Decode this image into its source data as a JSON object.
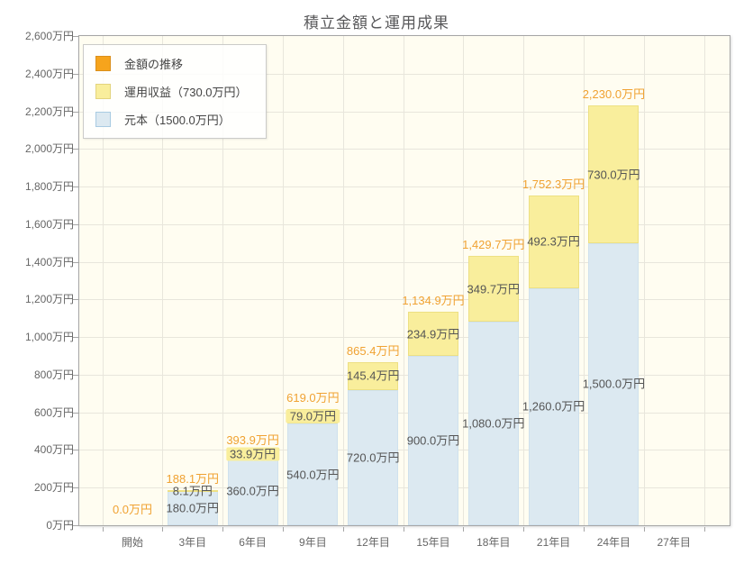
{
  "chart_data": {
    "type": "bar",
    "stacked": true,
    "title": "積立金額と運用成果",
    "categories": [
      "開始",
      "3年目",
      "6年目",
      "9年目",
      "12年目",
      "15年目",
      "18年目",
      "21年目",
      "24年目",
      "27年目"
    ],
    "series": [
      {
        "id": "principal",
        "name": "元本（1500.0万円）",
        "fill": "#DCE9F1",
        "border": "#CFE1ED",
        "values": [
          0,
          180.0,
          360.0,
          540.0,
          720.0,
          900.0,
          1080.0,
          1260.0,
          1500.0,
          null
        ],
        "labels": [
          "",
          "180.0万円",
          "360.0万円",
          "540.0万円",
          "720.0万円",
          "900.0万円",
          "1,080.0万円",
          "1,260.0万円",
          "1,500.0万円",
          ""
        ]
      },
      {
        "id": "returns",
        "name": "運用収益（730.0万円）",
        "fill": "#F9EE9C",
        "border": "#EDE083",
        "values": [
          0,
          8.1,
          33.9,
          79.0,
          145.4,
          234.9,
          349.7,
          492.3,
          730.0,
          null
        ],
        "labels": [
          "",
          "8.1万円",
          "33.9万円",
          "79.0万円",
          "145.4万円",
          "234.9万円",
          "349.7万円",
          "492.3万円",
          "730.0万円",
          ""
        ]
      }
    ],
    "totals": {
      "name": "金額の推移",
      "color": "#F0A232",
      "values": [
        0.0,
        188.1,
        393.9,
        619.0,
        865.4,
        1134.9,
        1429.7,
        1752.3,
        2230.0,
        null
      ],
      "labels": [
        "0.0万円",
        "188.1万円",
        "393.9万円",
        "619.0万円",
        "865.4万円",
        "1,134.9万円",
        "1,429.7万円",
        "1,752.3万円",
        "2,230.0万円",
        ""
      ]
    },
    "legend": {
      "items": [
        {
          "id": "amount",
          "label": "金額の推移",
          "fill": "#F6A41C",
          "border": "#DA901D"
        },
        {
          "id": "returns",
          "label": "運用収益（730.0万円）",
          "fill": "#F9EE9C",
          "border": "#E3D47E"
        },
        {
          "id": "principal",
          "label": "元本（1500.0万円）",
          "fill": "#DCE9F1",
          "border": "#A9CBE2"
        }
      ]
    },
    "y_axis": {
      "unit": "万円",
      "min": 0,
      "max": 2600,
      "step": 200,
      "ticks": [
        "0万円",
        "200万円",
        "400万円",
        "600万円",
        "800万円",
        "1,000万円",
        "1,200万円",
        "1,400万円",
        "1,600万円",
        "1,800万円",
        "2,000万円",
        "2,200万円",
        "2,400万円",
        "2,600万円"
      ]
    },
    "colors": {
      "plot_background": "#FFFDF1",
      "grid": "#E8E6DC",
      "axis_border": "#A6A6A6",
      "label_text": "#555555",
      "axis_text": "#666666",
      "title_text": "#58585a"
    }
  }
}
